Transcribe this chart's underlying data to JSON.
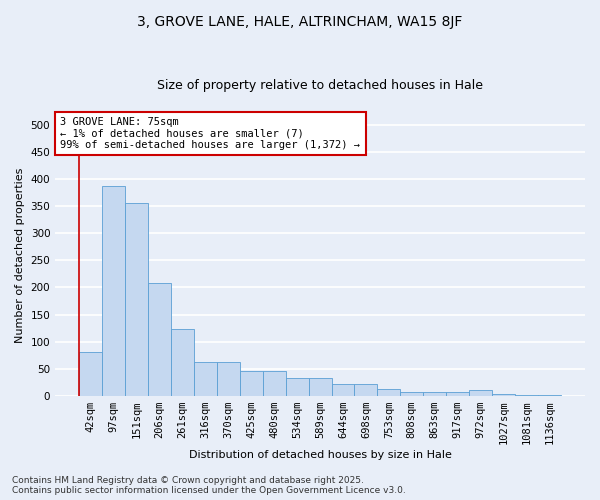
{
  "title_line1": "3, GROVE LANE, HALE, ALTRINCHAM, WA15 8JF",
  "title_line2": "Size of property relative to detached houses in Hale",
  "xlabel": "Distribution of detached houses by size in Hale",
  "ylabel": "Number of detached properties",
  "bar_color": "#c5d8f0",
  "bar_edge_color": "#5a9fd4",
  "annotation_box_color": "#cc0000",
  "annotation_line1": "3 GROVE LANE: 75sqm",
  "annotation_line2": "← 1% of detached houses are smaller (7)",
  "annotation_line3": "99% of semi-detached houses are larger (1,372) →",
  "marker_line_color": "#cc0000",
  "categories": [
    "42sqm",
    "97sqm",
    "151sqm",
    "206sqm",
    "261sqm",
    "316sqm",
    "370sqm",
    "425sqm",
    "480sqm",
    "534sqm",
    "589sqm",
    "644sqm",
    "698sqm",
    "753sqm",
    "808sqm",
    "863sqm",
    "917sqm",
    "972sqm",
    "1027sqm",
    "1081sqm",
    "1136sqm"
  ],
  "values": [
    80,
    388,
    355,
    208,
    123,
    63,
    63,
    45,
    45,
    32,
    32,
    22,
    22,
    13,
    7,
    7,
    7,
    10,
    3,
    2,
    1
  ],
  "ylim": [
    0,
    520
  ],
  "yticks": [
    0,
    50,
    100,
    150,
    200,
    250,
    300,
    350,
    400,
    450,
    500
  ],
  "footer_text": "Contains HM Land Registry data © Crown copyright and database right 2025.\nContains public sector information licensed under the Open Government Licence v3.0.",
  "background_color": "#e8eef8",
  "plot_background": "#e8eef8",
  "grid_color": "#ffffff",
  "title_fontsize": 10,
  "subtitle_fontsize": 9,
  "axis_label_fontsize": 8,
  "tick_fontsize": 7.5,
  "annotation_fontsize": 7.5,
  "footer_fontsize": 6.5
}
